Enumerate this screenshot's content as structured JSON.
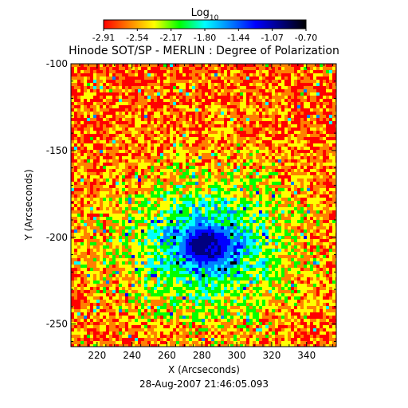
{
  "chart_data": {
    "type": "heatmap",
    "title": "Hinode SOT/SP - MERLIN : Degree of Polarization",
    "colorbar": {
      "label": "Log",
      "label_subscript": "10",
      "ticks": [
        "-2.91",
        "-2.54",
        "-2.17",
        "-1.80",
        "-1.44",
        "-1.07",
        "-0.70"
      ],
      "range": [
        -2.91,
        -0.7
      ],
      "colors": [
        "#ff0000",
        "#ff8000",
        "#ffff00",
        "#00ff00",
        "#00ffff",
        "#0080ff",
        "#0000ff",
        "#000080",
        "#000000"
      ]
    },
    "xlabel": "X (Arcseconds)",
    "ylabel": "Y (Arcseconds)",
    "xlim": [
      205,
      357
    ],
    "ylim": [
      -263,
      -100
    ],
    "xticks": [
      220,
      240,
      260,
      280,
      300,
      320,
      340
    ],
    "yticks": [
      -100,
      -150,
      -200,
      -250
    ],
    "features": {
      "sunspot_center": [
        282,
        -204
      ],
      "umbra_radius_arcsec": 7,
      "penumbra_radius_arcsec": 12
    },
    "date": "28-Aug-2007 21:46:05.093"
  }
}
